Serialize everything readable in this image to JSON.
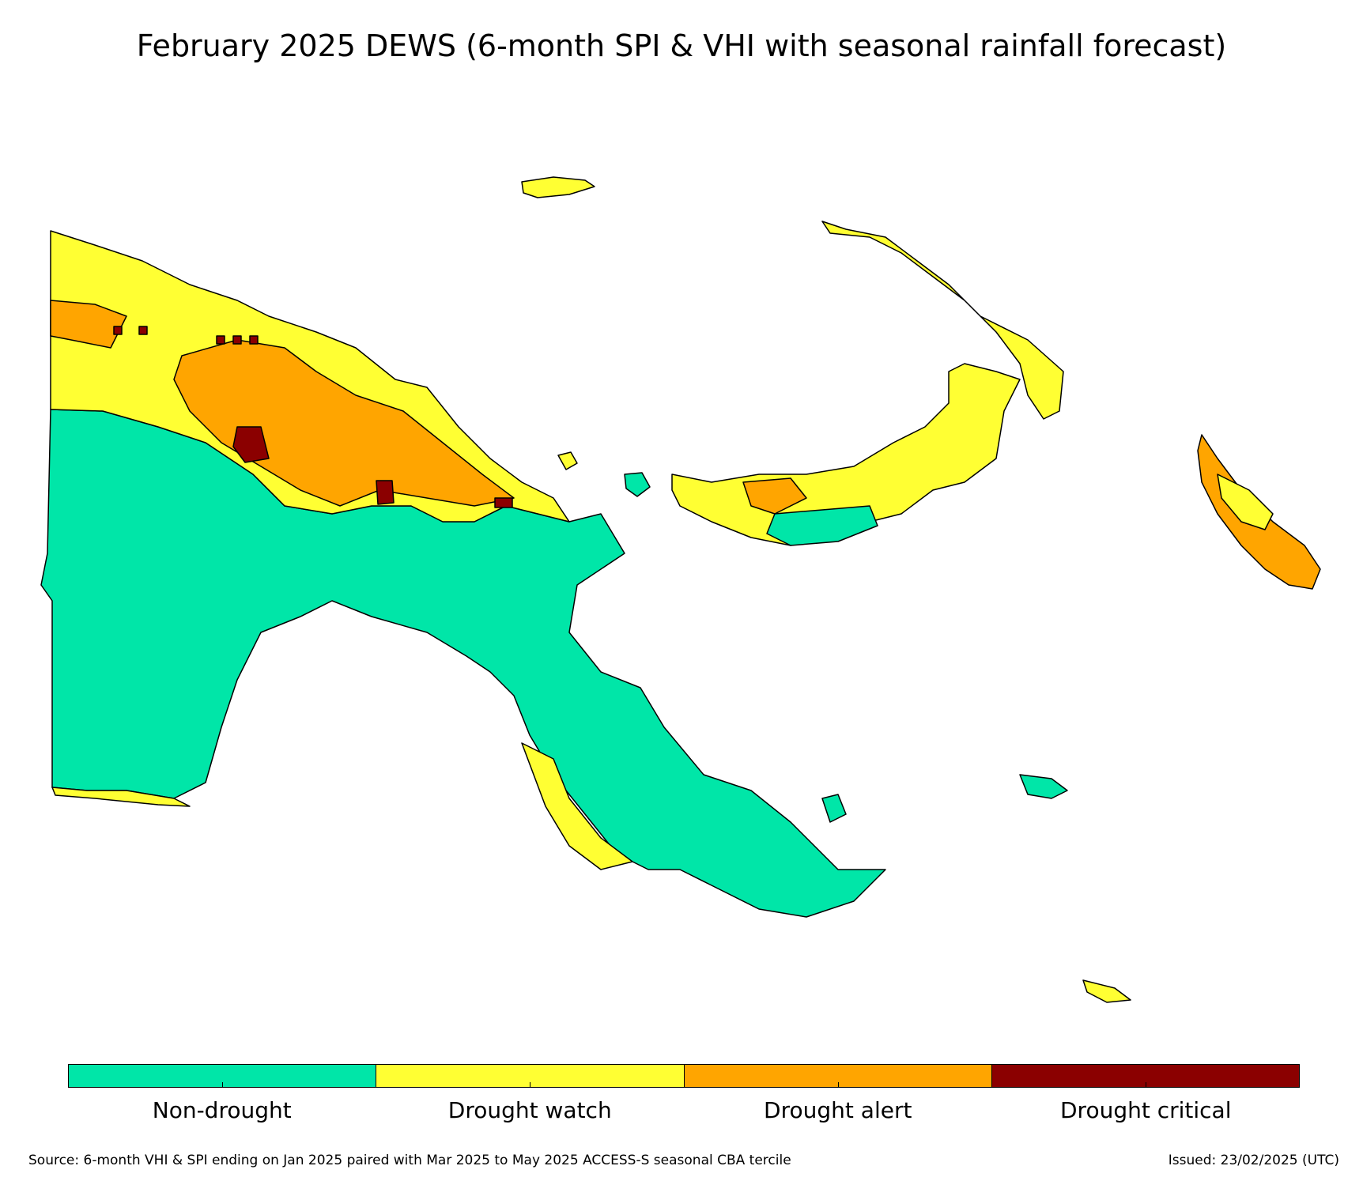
{
  "title": "February 2025 DEWS (6-month SPI & VHI with seasonal rainfall forecast)",
  "legend": {
    "categories": [
      {
        "label": "Non-drought",
        "color": "#00e6a8"
      },
      {
        "label": "Drought watch",
        "color": "#ffff33"
      },
      {
        "label": "Drought alert",
        "color": "#ffa500"
      },
      {
        "label": "Drought critical",
        "color": "#8b0000"
      }
    ]
  },
  "footer": {
    "source": "Source: 6-month VHI & SPI ending on Jan 2025 paired with Mar 2025 to May 2025 ACCESS-S seasonal CBA tercile",
    "issued": "Issued: 23/02/2025 (UTC)"
  }
}
